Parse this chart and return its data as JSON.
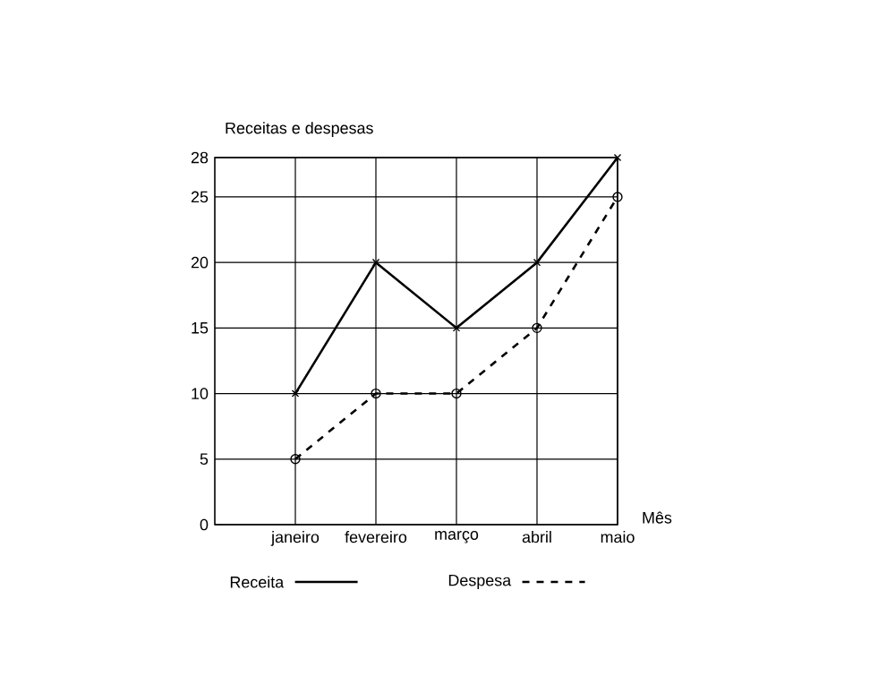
{
  "chart_data": {
    "type": "line",
    "ylabel": "Receitas e despesas",
    "xlabel": "Mês",
    "categories": [
      "janeiro",
      "fevereiro",
      "março",
      "abril",
      "maio"
    ],
    "series": [
      {
        "name": "Receita",
        "color": "#000000",
        "values": [
          10,
          20,
          15,
          20,
          28
        ],
        "marker": "cross",
        "line_style": "solid"
      },
      {
        "name": "Despesa",
        "color": "#000000",
        "values": [
          5,
          10,
          10,
          15,
          25
        ],
        "marker": "circle",
        "line_style": "dashed"
      }
    ],
    "ylim": [
      0,
      28
    ],
    "yticks": [
      0,
      5,
      10,
      15,
      20,
      25,
      28
    ],
    "grid": true,
    "legend": "bottom"
  }
}
